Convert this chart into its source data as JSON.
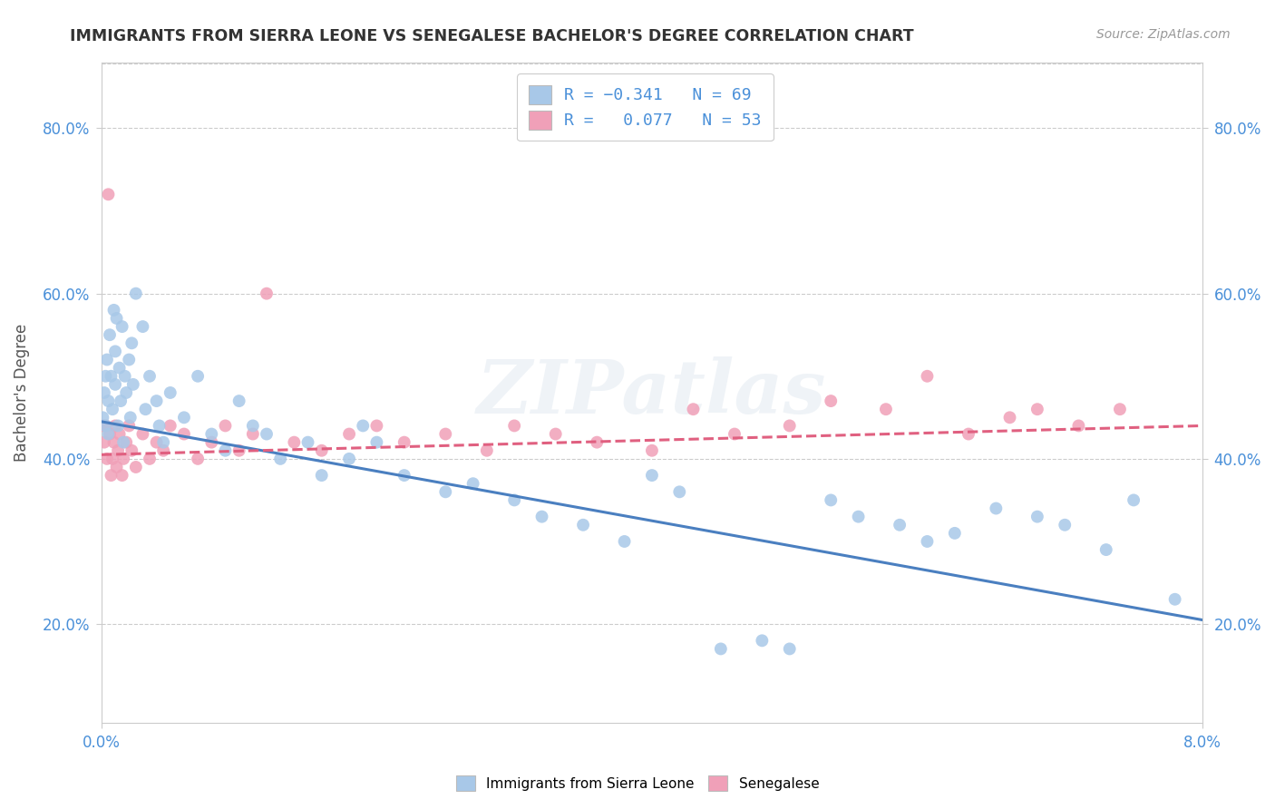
{
  "title": "IMMIGRANTS FROM SIERRA LEONE VS SENEGALESE BACHELOR'S DEGREE CORRELATION CHART",
  "source_text": "Source: ZipAtlas.com",
  "ylabel_label": "Bachelor's Degree",
  "xmin": 0.0,
  "xmax": 0.08,
  "ymin": 0.08,
  "ymax": 0.88,
  "ytick_labels": [
    "20.0%",
    "40.0%",
    "60.0%",
    "80.0%"
  ],
  "ytick_values": [
    0.2,
    0.4,
    0.6,
    0.8
  ],
  "xtick_labels": [
    "0.0%",
    "8.0%"
  ],
  "xtick_values": [
    0.0,
    0.08
  ],
  "color_blue": "#a8c8e8",
  "color_pink": "#f0a0b8",
  "line_blue": "#4a7fc0",
  "line_pink": "#e06080",
  "watermark": "ZIPatlas",
  "sierra_leone_x": [
    0.0001,
    0.0002,
    0.0003,
    0.0003,
    0.0004,
    0.0005,
    0.0005,
    0.0006,
    0.0007,
    0.0008,
    0.0009,
    0.001,
    0.001,
    0.0011,
    0.0012,
    0.0013,
    0.0014,
    0.0015,
    0.0016,
    0.0017,
    0.0018,
    0.002,
    0.0021,
    0.0022,
    0.0023,
    0.0025,
    0.003,
    0.0032,
    0.0035,
    0.004,
    0.0042,
    0.0045,
    0.005,
    0.006,
    0.007,
    0.008,
    0.009,
    0.01,
    0.011,
    0.012,
    0.013,
    0.015,
    0.016,
    0.018,
    0.019,
    0.02,
    0.022,
    0.025,
    0.027,
    0.03,
    0.032,
    0.035,
    0.038,
    0.04,
    0.042,
    0.045,
    0.048,
    0.05,
    0.053,
    0.055,
    0.058,
    0.06,
    0.062,
    0.065,
    0.068,
    0.07,
    0.073,
    0.075,
    0.078
  ],
  "sierra_leone_y": [
    0.45,
    0.48,
    0.5,
    0.44,
    0.52,
    0.47,
    0.43,
    0.55,
    0.5,
    0.46,
    0.58,
    0.49,
    0.53,
    0.57,
    0.44,
    0.51,
    0.47,
    0.56,
    0.42,
    0.5,
    0.48,
    0.52,
    0.45,
    0.54,
    0.49,
    0.6,
    0.56,
    0.46,
    0.5,
    0.47,
    0.44,
    0.42,
    0.48,
    0.45,
    0.5,
    0.43,
    0.41,
    0.47,
    0.44,
    0.43,
    0.4,
    0.42,
    0.38,
    0.4,
    0.44,
    0.42,
    0.38,
    0.36,
    0.37,
    0.35,
    0.33,
    0.32,
    0.3,
    0.38,
    0.36,
    0.17,
    0.18,
    0.17,
    0.35,
    0.33,
    0.32,
    0.3,
    0.31,
    0.34,
    0.33,
    0.32,
    0.29,
    0.35,
    0.23
  ],
  "senegalese_x": [
    0.0001,
    0.0002,
    0.0003,
    0.0004,
    0.0005,
    0.0006,
    0.0007,
    0.0008,
    0.0009,
    0.001,
    0.0011,
    0.0012,
    0.0013,
    0.0015,
    0.0016,
    0.0018,
    0.002,
    0.0022,
    0.0025,
    0.003,
    0.0035,
    0.004,
    0.0045,
    0.005,
    0.006,
    0.007,
    0.008,
    0.009,
    0.01,
    0.011,
    0.012,
    0.014,
    0.016,
    0.018,
    0.02,
    0.022,
    0.025,
    0.028,
    0.03,
    0.033,
    0.036,
    0.04,
    0.043,
    0.046,
    0.05,
    0.053,
    0.057,
    0.06,
    0.063,
    0.066,
    0.068,
    0.071,
    0.074
  ],
  "senegalese_y": [
    0.44,
    0.42,
    0.44,
    0.4,
    0.72,
    0.43,
    0.38,
    0.4,
    0.42,
    0.44,
    0.39,
    0.41,
    0.43,
    0.38,
    0.4,
    0.42,
    0.44,
    0.41,
    0.39,
    0.43,
    0.4,
    0.42,
    0.41,
    0.44,
    0.43,
    0.4,
    0.42,
    0.44,
    0.41,
    0.43,
    0.6,
    0.42,
    0.41,
    0.43,
    0.44,
    0.42,
    0.43,
    0.41,
    0.44,
    0.43,
    0.42,
    0.41,
    0.46,
    0.43,
    0.44,
    0.47,
    0.46,
    0.5,
    0.43,
    0.45,
    0.46,
    0.44,
    0.46
  ],
  "blue_line_y0": 0.445,
  "blue_line_y1": 0.205,
  "pink_line_y0": 0.405,
  "pink_line_y1": 0.44
}
